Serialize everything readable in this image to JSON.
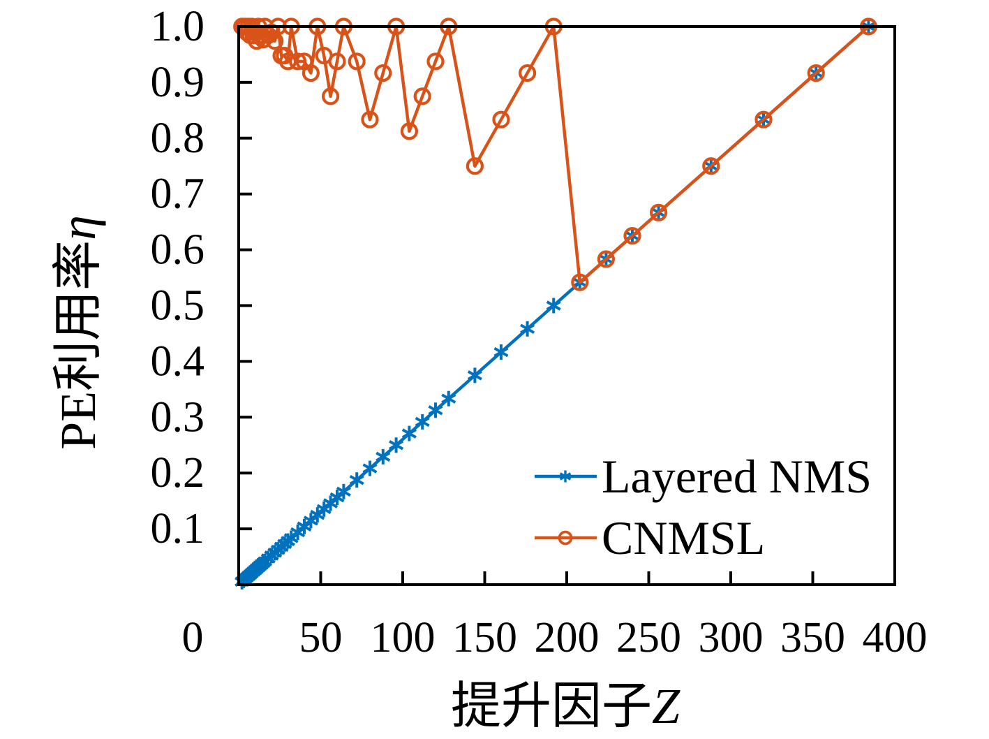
{
  "chart_data": {
    "type": "line",
    "title": "",
    "xlabel": "提升因子Z",
    "ylabel": "PE利用率η",
    "xlabel_parts": {
      "prefix": "提升因子",
      "symbol": "Z"
    },
    "ylabel_parts": {
      "prefix": "PE利用率",
      "symbol": "η"
    },
    "xlim": [
      0,
      400
    ],
    "ylim": [
      0,
      1.0
    ],
    "grid": false,
    "x_tick_values": [
      0,
      50,
      100,
      150,
      200,
      250,
      300,
      350,
      400
    ],
    "x_tick_labels": [
      "0",
      "50",
      "100",
      "150",
      "200",
      "250",
      "300",
      "350",
      "400"
    ],
    "y_tick_values": [
      0.1,
      0.2,
      0.3,
      0.4,
      0.5,
      0.6,
      0.7,
      0.8,
      0.9,
      1.0
    ],
    "y_tick_labels": [
      "0.1",
      "0.2",
      "0.3",
      "0.4",
      "0.5",
      "0.6",
      "0.7",
      "0.8",
      "0.9",
      "1.0"
    ],
    "legend": {
      "position": "inside-lower-right",
      "items": [
        "Layered NMS",
        "CNMSL"
      ]
    },
    "x": [
      2,
      3,
      4,
      5,
      6,
      7,
      8,
      9,
      10,
      11,
      12,
      13,
      14,
      15,
      16,
      18,
      20,
      22,
      24,
      26,
      28,
      30,
      32,
      36,
      40,
      44,
      48,
      52,
      56,
      60,
      64,
      72,
      80,
      88,
      96,
      104,
      112,
      120,
      128,
      144,
      160,
      176,
      192,
      208,
      224,
      240,
      256,
      288,
      320,
      352,
      384
    ],
    "series": [
      {
        "name": "Layered NMS",
        "color": "#0072BD",
        "marker": "asterisk",
        "values": [
          0.0052,
          0.0078,
          0.0104,
          0.013,
          0.0156,
          0.0182,
          0.0208,
          0.0234,
          0.026,
          0.0286,
          0.0313,
          0.0339,
          0.0365,
          0.0391,
          0.0417,
          0.0469,
          0.0521,
          0.0573,
          0.0625,
          0.0677,
          0.0729,
          0.0781,
          0.0833,
          0.0938,
          0.1042,
          0.1146,
          0.125,
          0.1354,
          0.1458,
          0.1563,
          0.1667,
          0.1875,
          0.2083,
          0.2292,
          0.25,
          0.2708,
          0.2917,
          0.3125,
          0.3333,
          0.375,
          0.4167,
          0.4583,
          0.5,
          0.5417,
          0.5833,
          0.625,
          0.6667,
          0.75,
          0.8333,
          0.9167,
          1.0
        ]
      },
      {
        "name": "CNMSL",
        "color": "#D95319",
        "marker": "circle",
        "values": [
          1.0,
          1.0,
          1.0,
          0.9896,
          1.0,
          0.9844,
          1.0,
          0.9844,
          0.9896,
          0.974,
          1.0,
          0.9818,
          0.9844,
          0.9766,
          1.0,
          0.9844,
          0.9896,
          0.974,
          1.0,
          0.9479,
          0.9479,
          0.9375,
          1.0,
          0.9375,
          0.9375,
          0.9167,
          1.0,
          0.9479,
          0.875,
          0.9375,
          1.0,
          0.9375,
          0.8333,
          0.9167,
          1.0,
          0.8125,
          0.875,
          0.9375,
          1.0,
          0.75,
          0.8333,
          0.9167,
          1.0,
          0.5417,
          0.5833,
          0.625,
          0.6667,
          0.75,
          0.8333,
          0.9167,
          1.0
        ]
      }
    ],
    "style": {
      "background": "#ffffff",
      "axis_color": "#000000",
      "text_color": "#000000"
    }
  }
}
